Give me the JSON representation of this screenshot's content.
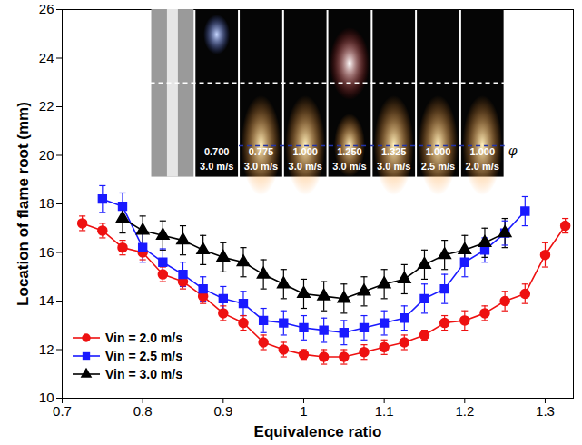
{
  "chart_data": {
    "type": "line",
    "x_label": "Equivalence ratio",
    "y_label": "Location of flame root (mm)",
    "xlim": [
      0.7,
      1.335
    ],
    "ylim": [
      10,
      26
    ],
    "xticks": [
      0.7,
      0.8,
      0.9,
      1.0,
      1.1,
      1.2,
      1.3
    ],
    "yticks": [
      10,
      12,
      14,
      16,
      18,
      20,
      22,
      24,
      26
    ],
    "legend": "bottom-left",
    "series": [
      {
        "name": "Vin = 2.0 m/s",
        "color": "#ee1111",
        "marker": "circle",
        "x": [
          0.725,
          0.75,
          0.775,
          0.8,
          0.825,
          0.85,
          0.875,
          0.9,
          0.925,
          0.95,
          0.975,
          1.0,
          1.025,
          1.05,
          1.075,
          1.1,
          1.125,
          1.15,
          1.175,
          1.2,
          1.225,
          1.25,
          1.275,
          1.3,
          1.325
        ],
        "values": [
          17.2,
          16.9,
          16.2,
          16.0,
          15.1,
          14.8,
          14.2,
          13.5,
          13.1,
          12.3,
          12.0,
          11.8,
          11.7,
          11.7,
          11.9,
          12.1,
          12.3,
          12.6,
          13.1,
          13.2,
          13.5,
          14.0,
          14.3,
          15.9,
          17.1
        ],
        "errors": [
          0.3,
          0.3,
          0.3,
          0.3,
          0.3,
          0.3,
          0.3,
          0.3,
          0.3,
          0.3,
          0.3,
          0.2,
          0.3,
          0.3,
          0.3,
          0.3,
          0.3,
          0.2,
          0.3,
          0.4,
          0.3,
          0.4,
          0.4,
          0.5,
          0.3
        ]
      },
      {
        "name": "Vin = 2.5 m/s",
        "color": "#1a1aff",
        "marker": "square",
        "x": [
          0.75,
          0.775,
          0.8,
          0.825,
          0.85,
          0.875,
          0.9,
          0.925,
          0.95,
          0.975,
          1.0,
          1.025,
          1.05,
          1.075,
          1.1,
          1.125,
          1.15,
          1.175,
          1.2,
          1.225,
          1.25,
          1.275
        ],
        "values": [
          18.2,
          17.9,
          16.2,
          15.6,
          15.1,
          14.5,
          14.1,
          13.9,
          13.2,
          13.1,
          12.9,
          12.8,
          12.7,
          12.9,
          13.1,
          13.3,
          14.1,
          14.5,
          15.6,
          16.1,
          16.8,
          17.7
        ],
        "errors": [
          0.55,
          0.55,
          0.6,
          0.55,
          0.5,
          0.5,
          0.5,
          0.5,
          0.5,
          0.5,
          0.5,
          0.5,
          0.5,
          0.5,
          0.5,
          0.5,
          0.6,
          0.6,
          0.6,
          0.5,
          0.5,
          0.6
        ]
      },
      {
        "name": "Vin = 3.0 m/s",
        "color": "#000000",
        "marker": "triangle",
        "x": [
          0.775,
          0.8,
          0.825,
          0.85,
          0.875,
          0.9,
          0.925,
          0.95,
          0.975,
          1.0,
          1.025,
          1.05,
          1.075,
          1.1,
          1.125,
          1.15,
          1.175,
          1.2,
          1.225,
          1.25
        ],
        "values": [
          17.4,
          16.9,
          16.7,
          16.5,
          16.1,
          15.8,
          15.6,
          15.1,
          14.7,
          14.3,
          14.2,
          14.1,
          14.4,
          14.7,
          14.9,
          15.5,
          15.9,
          16.1,
          16.4,
          16.8
        ],
        "errors": [
          0.6,
          0.6,
          0.6,
          0.6,
          0.6,
          0.6,
          0.6,
          0.6,
          0.6,
          0.6,
          0.6,
          0.6,
          0.6,
          0.6,
          0.6,
          0.6,
          0.6,
          0.6,
          0.6,
          0.6
        ]
      }
    ],
    "inset_labels": [
      [
        "0.700",
        "3.0 m/s"
      ],
      [
        "0.775",
        "3.0 m/s"
      ],
      [
        "1.000",
        "3.0 m/s"
      ],
      [
        "1.250",
        "3.0 m/s"
      ],
      [
        "1.325",
        "3.0 m/s"
      ],
      [
        "1.000",
        "2.5 m/s"
      ],
      [
        "1.000",
        "2.0 m/s"
      ]
    ],
    "inset_symbol": "φ"
  }
}
